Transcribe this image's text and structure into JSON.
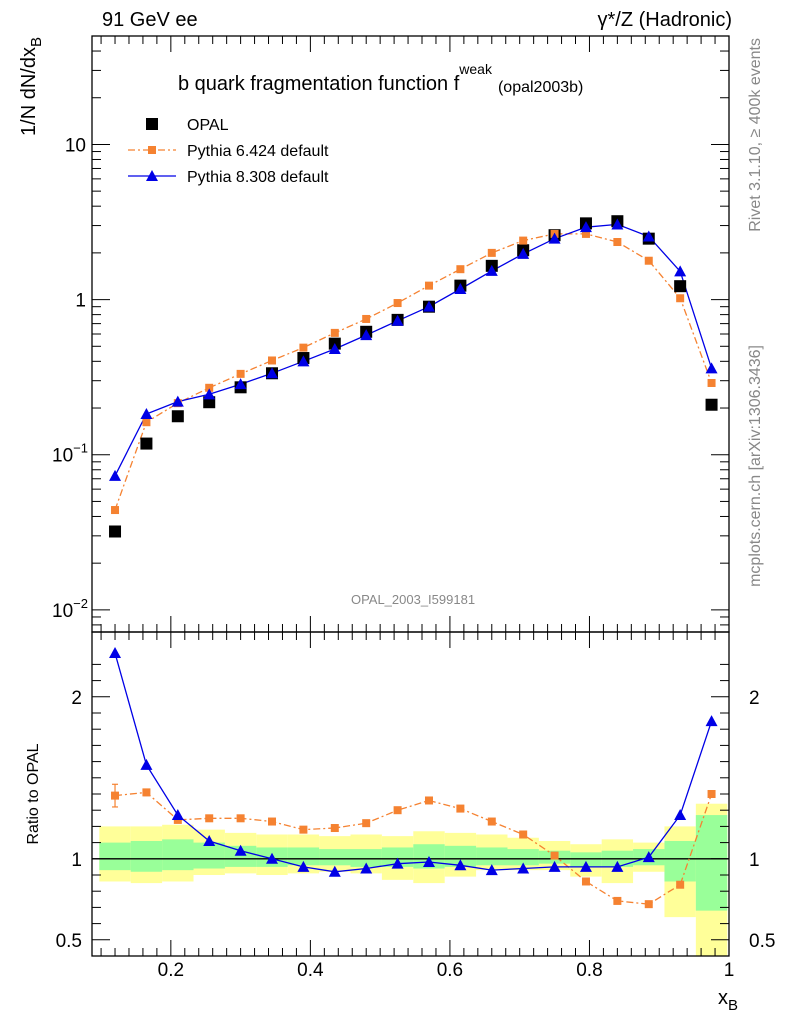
{
  "header": {
    "left": "91 GeV ee",
    "right": "γ*/Z (Hadronic)"
  },
  "side_labels": {
    "rivet": "Rivet 3.1.10, ≥ 400k events",
    "mcplots": "mcplots.cern.ch [arXiv:1306.3436]"
  },
  "chart_data": [
    {
      "type": "scatter",
      "title": "b quark fragmentation function f",
      "title_superscript": "weak",
      "title_suffix": "(opal2003b)",
      "analysis_tag": "OPAL_2003_I599181",
      "ylabel": "1/N dN/dx",
      "ylabel_subscript": "B",
      "yscale": "log",
      "ylim": [
        0.0072,
        50
      ],
      "xlim": [
        0.087,
        1.0
      ],
      "yticks": [
        {
          "value": 0.01,
          "base": "10",
          "exp": "−2"
        },
        {
          "value": 0.1,
          "base": "10",
          "exp": "−1"
        },
        {
          "value": 1,
          "base": "1",
          "exp": ""
        },
        {
          "value": 10,
          "base": "10",
          "exp": ""
        }
      ],
      "x": [
        0.12,
        0.165,
        0.21,
        0.255,
        0.3,
        0.345,
        0.39,
        0.435,
        0.48,
        0.525,
        0.57,
        0.615,
        0.66,
        0.705,
        0.75,
        0.795,
        0.84,
        0.885,
        0.93,
        0.975
      ],
      "series": [
        {
          "name": "OPAL",
          "color": "#000000",
          "marker": "square",
          "values": [
            0.032,
            0.118,
            0.177,
            0.218,
            0.272,
            0.335,
            0.42,
            0.52,
            0.62,
            0.74,
            0.9,
            1.23,
            1.65,
            2.08,
            2.6,
            3.1,
            3.2,
            2.47,
            1.22,
            0.21
          ]
        },
        {
          "name": "Pythia 6.424 default",
          "color": "#f58231",
          "marker": "square-small",
          "line": "dashdot",
          "values": [
            0.044,
            0.162,
            0.215,
            0.27,
            0.332,
            0.405,
            0.49,
            0.61,
            0.75,
            0.95,
            1.23,
            1.57,
            2.0,
            2.4,
            2.65,
            2.65,
            2.35,
            1.78,
            1.02,
            0.29
          ]
        },
        {
          "name": "Pythia 8.308 default",
          "color": "#0000e6",
          "marker": "triangle",
          "line": "solid",
          "values": [
            0.073,
            0.183,
            0.22,
            0.245,
            0.285,
            0.335,
            0.4,
            0.48,
            0.59,
            0.73,
            0.9,
            1.17,
            1.53,
            1.97,
            2.47,
            2.93,
            3.05,
            2.55,
            1.52,
            0.36
          ]
        }
      ]
    },
    {
      "type": "line",
      "ylabel": "Ratio to OPAL",
      "xlabel": "x",
      "xlabel_subscript": "B",
      "ylim": [
        0.4,
        2.4
      ],
      "xlim": [
        0.087,
        1.0
      ],
      "yticks": [
        0.5,
        1,
        2
      ],
      "xticks": [
        0.2,
        0.4,
        0.6,
        0.8,
        1.0
      ],
      "xtick_labels": [
        "0.2",
        "0.4",
        "0.6",
        "0.8",
        "1"
      ],
      "reference": 1,
      "x": [
        0.12,
        0.165,
        0.21,
        0.255,
        0.3,
        0.345,
        0.39,
        0.435,
        0.48,
        0.525,
        0.57,
        0.615,
        0.66,
        0.705,
        0.75,
        0.795,
        0.84,
        0.885,
        0.93,
        0.975
      ],
      "bin_edges": [
        0.0975,
        0.1425,
        0.1875,
        0.2325,
        0.2775,
        0.3225,
        0.3675,
        0.4125,
        0.4575,
        0.5025,
        0.5475,
        0.5925,
        0.6375,
        0.6825,
        0.7275,
        0.7725,
        0.8175,
        0.8625,
        0.9075,
        0.9525,
        0.9975
      ],
      "band_inner": {
        "color": "#99ff99",
        "lower": [
          0.93,
          0.92,
          0.93,
          0.94,
          0.95,
          0.95,
          0.96,
          0.96,
          0.95,
          0.95,
          0.94,
          0.95,
          0.96,
          0.96,
          0.97,
          0.95,
          0.95,
          0.96,
          0.86,
          0.68
        ],
        "upper": [
          1.1,
          1.11,
          1.12,
          1.1,
          1.08,
          1.07,
          1.07,
          1.06,
          1.06,
          1.07,
          1.09,
          1.08,
          1.07,
          1.06,
          1.05,
          1.04,
          1.05,
          1.06,
          1.11,
          1.27
        ]
      },
      "band_outer": {
        "color": "#ffff99",
        "lower": [
          0.86,
          0.85,
          0.86,
          0.9,
          0.91,
          0.9,
          0.91,
          0.92,
          0.91,
          0.87,
          0.85,
          0.89,
          0.93,
          0.93,
          0.93,
          0.89,
          0.85,
          0.92,
          0.64,
          0.34
        ],
        "upper": [
          1.2,
          1.2,
          1.21,
          1.18,
          1.16,
          1.15,
          1.15,
          1.14,
          1.15,
          1.14,
          1.17,
          1.16,
          1.15,
          1.13,
          1.11,
          1.09,
          1.12,
          1.1,
          1.2,
          1.34
        ]
      },
      "series": [
        {
          "name": "Pythia 6.424 default",
          "color": "#f58231",
          "marker": "square-small",
          "line": "dashdot",
          "values": [
            1.39,
            1.41,
            1.24,
            1.25,
            1.25,
            1.23,
            1.18,
            1.19,
            1.22,
            1.3,
            1.36,
            1.31,
            1.23,
            1.15,
            1.02,
            0.86,
            0.74,
            0.72,
            0.84,
            1.4
          ],
          "errors": [
            0.07,
            0.02,
            0.01,
            0.01,
            0.01,
            0.01,
            0.01,
            0.01,
            0.01,
            0.01,
            0.01,
            0.01,
            0.01,
            0.01,
            0.01,
            0.01,
            0.01,
            0.01,
            0.01,
            0.02
          ]
        },
        {
          "name": "Pythia 8.308 default",
          "color": "#0000e6",
          "marker": "triangle",
          "line": "solid",
          "values": [
            2.27,
            1.58,
            1.27,
            1.11,
            1.05,
            1.0,
            0.95,
            0.92,
            0.94,
            0.97,
            0.98,
            0.96,
            0.93,
            0.94,
            0.95,
            0.95,
            0.95,
            1.01,
            1.27,
            1.85
          ]
        }
      ]
    }
  ]
}
